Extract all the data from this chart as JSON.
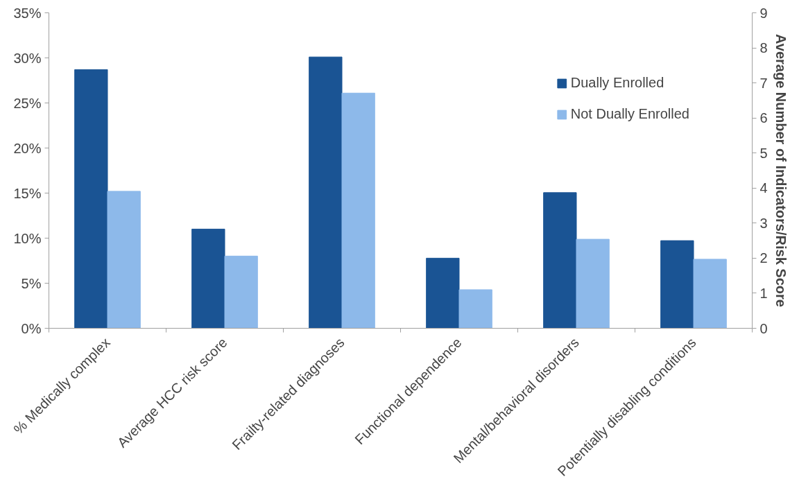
{
  "chart_data": {
    "type": "bar",
    "categories": [
      "% Medically complex",
      "Average HCC risk score",
      "Frailty-related diagnoses",
      "Functional dependence",
      "Mental/behavioral disorders",
      "Potentially disabling conditions"
    ],
    "y2label": "Average Number of Indicators/Risk Score",
    "series": [
      {
        "name": "Dually Enrolled",
        "color": "#1a5494",
        "axis": "y",
        "values": [
          28.7,
          null,
          null,
          null,
          null,
          null
        ]
      },
      {
        "name": "Not Dually Enrolled",
        "color": "#8db9ea",
        "axis": "y",
        "values": [
          15.2,
          null,
          null,
          null,
          null,
          null
        ]
      },
      {
        "color": "#1a5494",
        "axis": "y2",
        "values": [
          null,
          2.83,
          7.74,
          2.0,
          3.87,
          2.5
        ]
      },
      {
        "color": "#8db9ea",
        "axis": "y2",
        "values": [
          null,
          2.06,
          6.71,
          1.1,
          2.54,
          1.97
        ]
      }
    ],
    "ylim": [
      0,
      35
    ],
    "yticks": [
      {
        "value": 0,
        "label": "0%"
      },
      {
        "value": 5,
        "label": "5%"
      },
      {
        "value": 10,
        "label": "10%"
      },
      {
        "value": 15,
        "label": "15%"
      },
      {
        "value": 20,
        "label": "20%"
      },
      {
        "value": 25,
        "label": "25%"
      },
      {
        "value": 30,
        "label": "30%"
      },
      {
        "value": 35,
        "label": "35%"
      }
    ],
    "y2lim": [
      0,
      9
    ],
    "y2ticks": [
      0,
      1,
      2,
      3,
      4,
      5,
      6,
      7,
      8,
      9
    ],
    "legend": "top right",
    "grid": false
  }
}
